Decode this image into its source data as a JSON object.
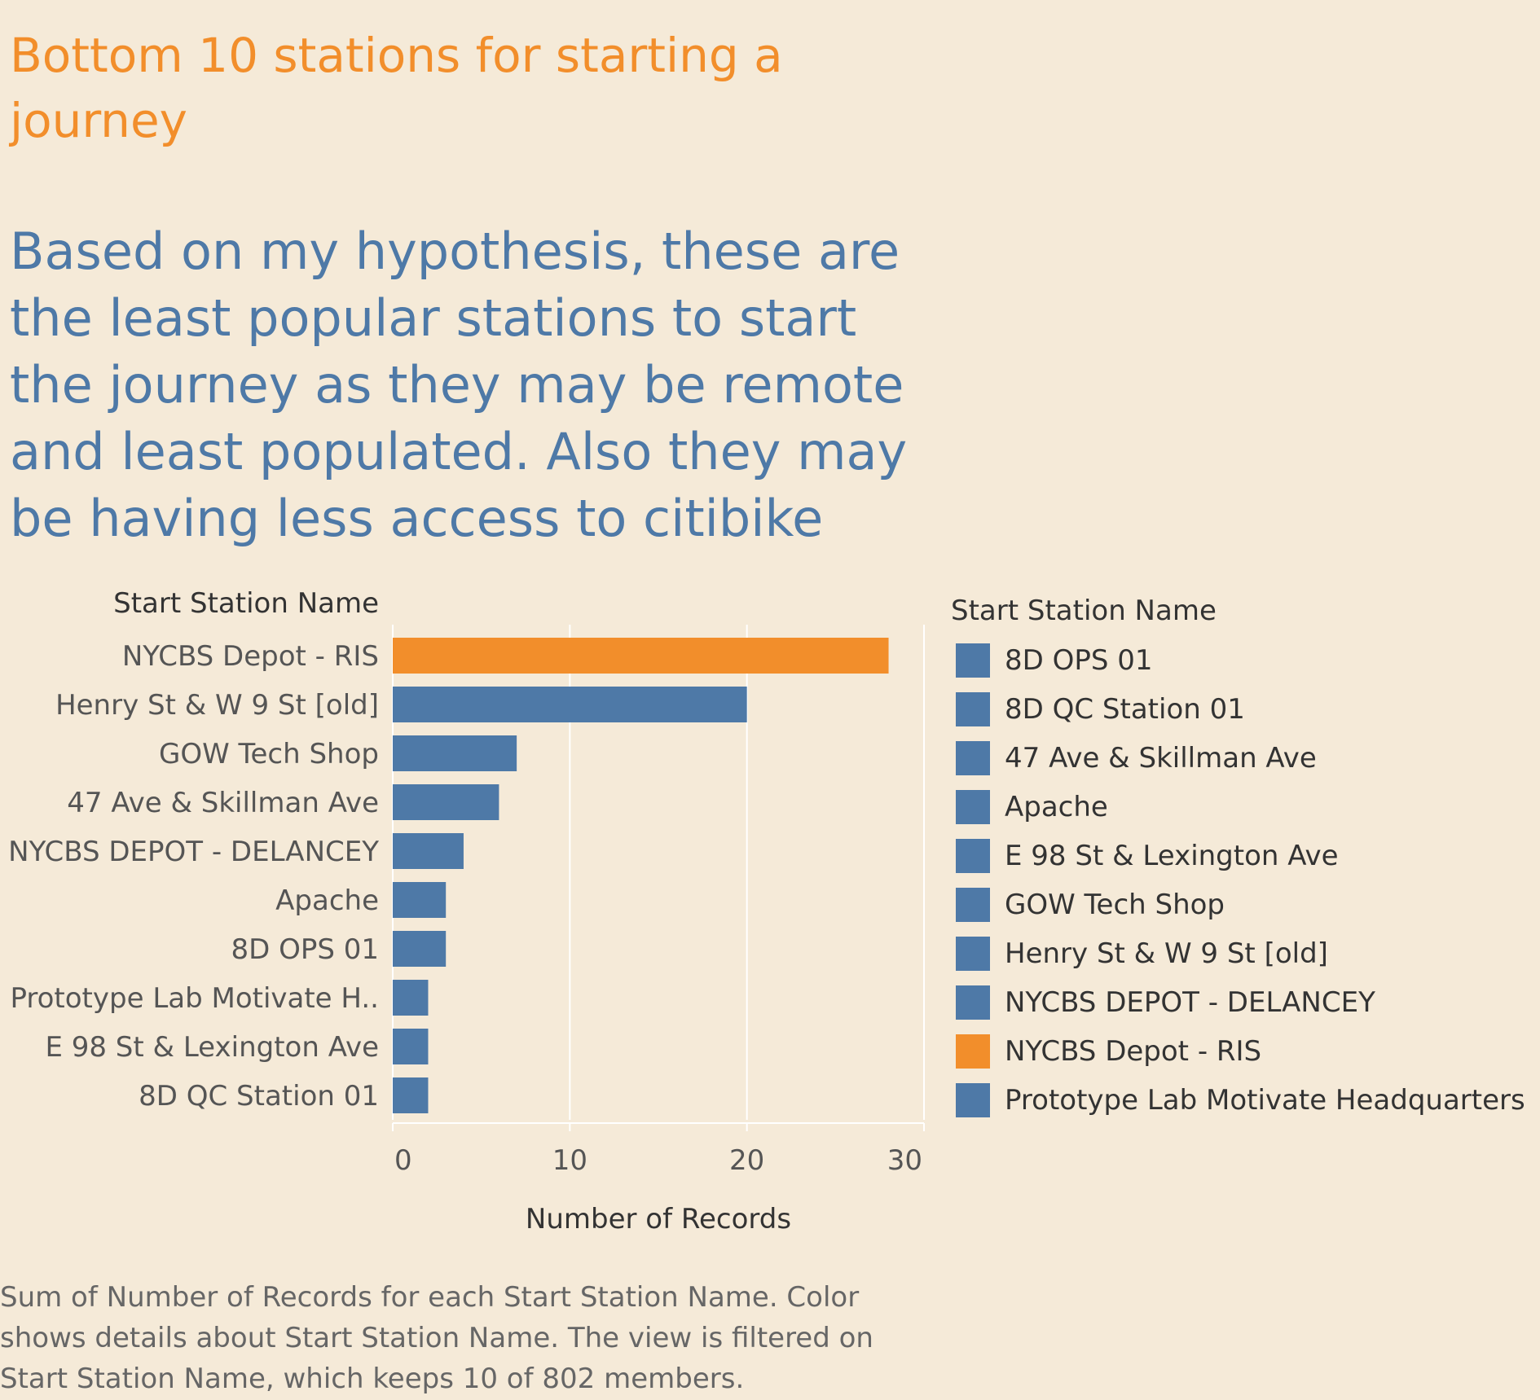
{
  "title": "Bottom 10 stations for starting a journey",
  "subtitle": "Based on my hypothesis, these  are the least popular stations to start the journey as they may be remote and least populated. Also they may be having less access to  citibike",
  "caption": "Sum of Number of Records for each Start Station Name.  Color shows details about Start Station Name. The view is filtered on Start Station Name, which keeps 10 of 802 members.",
  "colors": {
    "highlight": "#f28e2b",
    "default": "#4e79a7"
  },
  "chart_data": {
    "type": "bar",
    "orientation": "horizontal",
    "ylabel": "Start Station Name",
    "xlabel": "Number of Records",
    "xlim": [
      0,
      30
    ],
    "xticks": [
      "0",
      "10",
      "20",
      "30"
    ],
    "grid": true,
    "categories": [
      "NYCBS Depot - RIS",
      "Henry St & W 9 St [old]",
      "GOW Tech Shop",
      "47 Ave & Skillman Ave",
      "NYCBS DEPOT - DELANCEY",
      "Apache",
      "8D OPS 01",
      "Prototype Lab Motivate H..",
      "E 98 St & Lexington Ave",
      "8D QC Station 01"
    ],
    "values": [
      28,
      20,
      7,
      6,
      4,
      3,
      3,
      2,
      2,
      2
    ],
    "bar_colors": [
      "#f28e2b",
      "#4e79a7",
      "#4e79a7",
      "#4e79a7",
      "#4e79a7",
      "#4e79a7",
      "#4e79a7",
      "#4e79a7",
      "#4e79a7",
      "#4e79a7"
    ]
  },
  "legend": {
    "title": "Start Station Name",
    "placement": "right",
    "items": [
      {
        "label": "8D OPS 01",
        "color": "#4e79a7"
      },
      {
        "label": "8D QC Station 01",
        "color": "#4e79a7"
      },
      {
        "label": "47 Ave & Skillman Ave",
        "color": "#4e79a7"
      },
      {
        "label": "Apache",
        "color": "#4e79a7"
      },
      {
        "label": "E 98 St & Lexington Ave",
        "color": "#4e79a7"
      },
      {
        "label": "GOW Tech Shop",
        "color": "#4e79a7"
      },
      {
        "label": "Henry St & W 9 St [old]",
        "color": "#4e79a7"
      },
      {
        "label": "NYCBS DEPOT - DELANCEY",
        "color": "#4e79a7"
      },
      {
        "label": "NYCBS Depot - RIS",
        "color": "#f28e2b"
      },
      {
        "label": "Prototype Lab Motivate Headquarters",
        "color": "#4e79a7"
      }
    ]
  }
}
